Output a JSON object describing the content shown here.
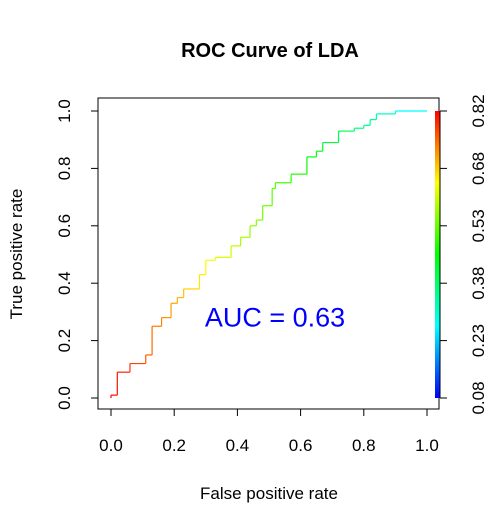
{
  "chart_data": {
    "type": "line",
    "title": "ROC Curve of LDA",
    "xlabel": "False positive rate",
    "ylabel": "True positive rate",
    "xlim": [
      0.0,
      1.0
    ],
    "ylim": [
      0.0,
      1.0
    ],
    "x_ticks": [
      "0.0",
      "0.2",
      "0.4",
      "0.6",
      "0.8",
      "1.0"
    ],
    "y_ticks": [
      "0.0",
      "0.2",
      "0.4",
      "0.6",
      "0.8",
      "1.0"
    ],
    "colorbar": {
      "label_ticks": [
        "0.08",
        "0.23",
        "0.38",
        "0.53",
        "0.68",
        "0.82"
      ],
      "range": [
        0.08,
        0.82
      ],
      "colors": [
        "#0000ff",
        "#00ffff",
        "#00ff00",
        "#ffff00",
        "#ff0000"
      ]
    },
    "annotation": {
      "text": "AUC = 0.63",
      "x": 0.5,
      "y": 0.28,
      "color": "#0000ff"
    },
    "grid": false,
    "series": [
      {
        "points": [
          [
            0.0,
            0.0
          ],
          [
            0.0,
            0.01
          ],
          [
            0.02,
            0.01
          ],
          [
            0.02,
            0.09
          ],
          [
            0.06,
            0.09
          ],
          [
            0.06,
            0.12
          ],
          [
            0.11,
            0.12
          ],
          [
            0.11,
            0.15
          ],
          [
            0.13,
            0.15
          ],
          [
            0.13,
            0.25
          ],
          [
            0.16,
            0.25
          ],
          [
            0.16,
            0.28
          ],
          [
            0.19,
            0.28
          ],
          [
            0.19,
            0.33
          ],
          [
            0.21,
            0.33
          ],
          [
            0.21,
            0.35
          ],
          [
            0.23,
            0.35
          ],
          [
            0.23,
            0.38
          ],
          [
            0.28,
            0.38
          ],
          [
            0.28,
            0.43
          ],
          [
            0.3,
            0.43
          ],
          [
            0.3,
            0.48
          ],
          [
            0.33,
            0.48
          ],
          [
            0.33,
            0.49
          ],
          [
            0.38,
            0.49
          ],
          [
            0.38,
            0.53
          ],
          [
            0.41,
            0.53
          ],
          [
            0.41,
            0.56
          ],
          [
            0.44,
            0.56
          ],
          [
            0.44,
            0.6
          ],
          [
            0.46,
            0.6
          ],
          [
            0.46,
            0.62
          ],
          [
            0.48,
            0.62
          ],
          [
            0.48,
            0.67
          ],
          [
            0.51,
            0.67
          ],
          [
            0.51,
            0.73
          ],
          [
            0.52,
            0.73
          ],
          [
            0.52,
            0.75
          ],
          [
            0.57,
            0.75
          ],
          [
            0.57,
            0.78
          ],
          [
            0.62,
            0.78
          ],
          [
            0.62,
            0.84
          ],
          [
            0.65,
            0.84
          ],
          [
            0.65,
            0.86
          ],
          [
            0.67,
            0.86
          ],
          [
            0.67,
            0.89
          ],
          [
            0.72,
            0.89
          ],
          [
            0.72,
            0.93
          ],
          [
            0.77,
            0.93
          ],
          [
            0.77,
            0.94
          ],
          [
            0.8,
            0.94
          ],
          [
            0.8,
            0.95
          ],
          [
            0.82,
            0.95
          ],
          [
            0.82,
            0.97
          ],
          [
            0.84,
            0.97
          ],
          [
            0.84,
            0.99
          ],
          [
            0.9,
            0.99
          ],
          [
            0.9,
            1.0
          ],
          [
            1.0,
            1.0
          ]
        ]
      }
    ]
  }
}
